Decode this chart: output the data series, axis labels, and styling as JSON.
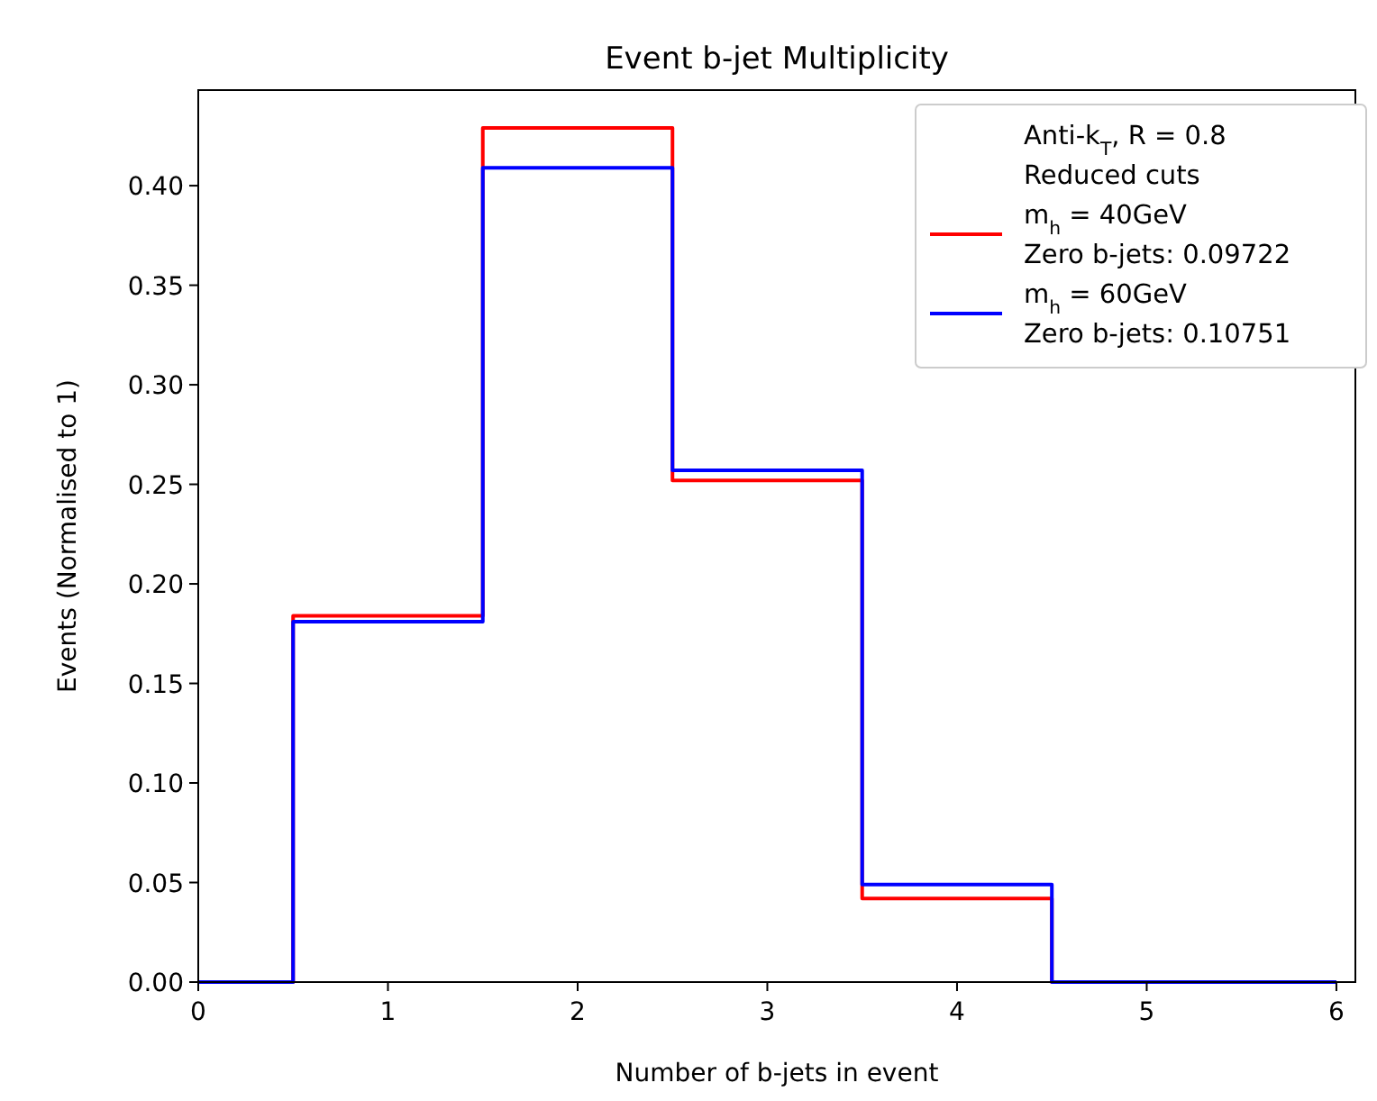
{
  "chart_data": {
    "type": "histogram",
    "title": "Event b-jet Multiplicity",
    "xlabel": "Number of b-jets in event",
    "ylabel": "Events (Normalised to 1)",
    "legend_title": "Anti-k$_{T}$, R = 0.8\nReduced cuts",
    "bins": [
      0,
      0.5,
      1.5,
      2.5,
      3.5,
      4.5,
      5.5,
      6
    ],
    "series": [
      {
        "name": "m$_{h}$ = 40GeV\nZero b-jets: 0.09722",
        "color": "#ff0000",
        "values": [
          0,
          0.184,
          0.429,
          0.252,
          0.042,
          0,
          0
        ]
      },
      {
        "name": "m$_{h}$ = 60GeV\nZero b-jets: 0.10751",
        "color": "#0000ff",
        "values": [
          0,
          0.181,
          0.409,
          0.257,
          0.049,
          0,
          0
        ]
      }
    ],
    "xlim": [
      0,
      6.1
    ],
    "ylim": [
      0,
      0.448
    ],
    "xticks": [
      0,
      1,
      2,
      3,
      4,
      5,
      6
    ],
    "yticks": [
      {
        "value": 0,
        "label": "0.00"
      },
      {
        "value": 0.05,
        "label": "0.05"
      },
      {
        "value": 0.1,
        "label": "0.10"
      },
      {
        "value": 0.15,
        "label": "0.15"
      },
      {
        "value": 0.2,
        "label": "0.20"
      },
      {
        "value": 0.25,
        "label": "0.25"
      },
      {
        "value": 0.3,
        "label": "0.30"
      },
      {
        "value": 0.35,
        "label": "0.35"
      },
      {
        "value": 0.4,
        "label": "0.40"
      }
    ],
    "grid": false,
    "legend": "top right"
  }
}
